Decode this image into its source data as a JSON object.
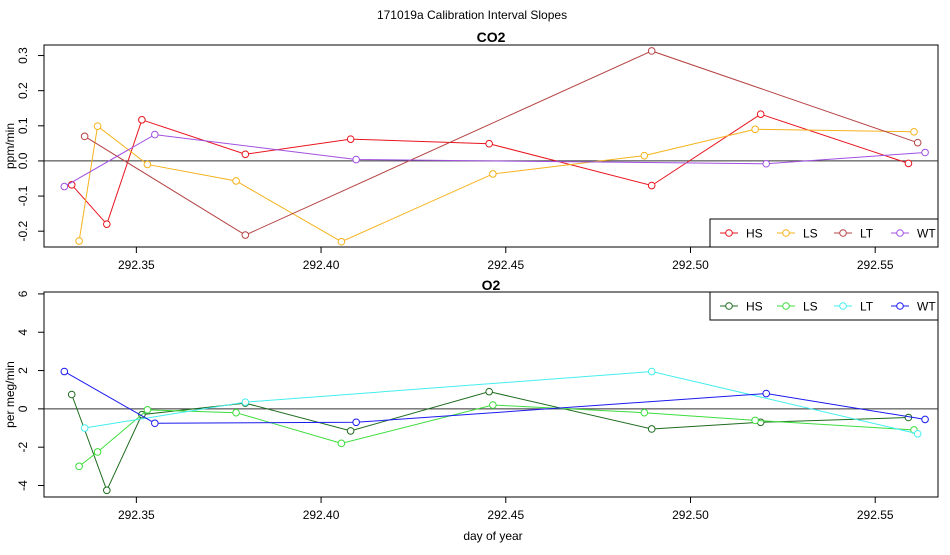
{
  "figure_title": "171019a   Calibration Interval Slopes",
  "chart_data": [
    {
      "type": "line",
      "title": "CO2",
      "xlabel": "",
      "ylabel": "ppm/min",
      "xlim": [
        292.325,
        292.567
      ],
      "ylim": [
        -0.245,
        0.33
      ],
      "x_ticks": [
        292.35,
        292.4,
        292.45,
        292.5,
        292.55
      ],
      "x_tick_labels": [
        "292.35",
        "292.40",
        "292.45",
        "292.50",
        "292.55"
      ],
      "y_ticks": [
        -0.2,
        -0.1,
        0.0,
        0.1,
        0.2,
        0.3
      ],
      "y_tick_labels": [
        "-0.2",
        "-0.1",
        "0.0",
        "0.1",
        "0.2",
        "0.3"
      ],
      "reference_line_y": 0,
      "legend_position": "bottom-right",
      "series": [
        {
          "name": "HS",
          "color": "#e8141e",
          "x": [
            292.3325,
            292.342,
            292.3515,
            292.3795,
            292.408,
            292.4455,
            292.4895,
            292.519,
            292.559
          ],
          "y": [
            -0.068,
            -0.18,
            0.117,
            0.019,
            0.062,
            0.049,
            -0.07,
            0.133,
            -0.007
          ]
        },
        {
          "name": "LS",
          "color": "#f5b21c",
          "x": [
            292.3345,
            292.3395,
            292.353,
            292.377,
            292.4055,
            292.4465,
            292.4875,
            292.5175,
            292.5605
          ],
          "y": [
            -0.228,
            0.099,
            -0.01,
            -0.057,
            -0.23,
            -0.037,
            0.015,
            0.09,
            0.083
          ]
        },
        {
          "name": "LT",
          "color": "#b54444",
          "x": [
            292.336,
            292.3795,
            292.4895,
            292.5615
          ],
          "y": [
            0.07,
            -0.211,
            0.313,
            0.052
          ]
        },
        {
          "name": "WT",
          "color": "#a050e0",
          "x": [
            292.3305,
            292.355,
            292.4095,
            292.5205,
            292.5635
          ],
          "y": [
            -0.073,
            0.075,
            0.004,
            -0.008,
            0.024
          ]
        }
      ]
    },
    {
      "type": "line",
      "title": "O2",
      "xlabel": "day of year",
      "ylabel": "per meg/min",
      "xlim": [
        292.325,
        292.567
      ],
      "ylim": [
        -4.6,
        6.1
      ],
      "x_ticks": [
        292.35,
        292.4,
        292.45,
        292.5,
        292.55
      ],
      "x_tick_labels": [
        "292.35",
        "292.40",
        "292.45",
        "292.50",
        "292.55"
      ],
      "y_ticks": [
        -4,
        -2,
        0,
        2,
        4,
        6
      ],
      "y_tick_labels": [
        "-4",
        "-2",
        "0",
        "2",
        "4",
        "6"
      ],
      "reference_line_y": 0,
      "legend_position": "top-right",
      "series": [
        {
          "name": "HS",
          "color": "#1e6b1e",
          "x": [
            292.3325,
            292.342,
            292.3515,
            292.3795,
            292.408,
            292.4455,
            292.4895,
            292.519,
            292.559
          ],
          "y": [
            0.75,
            -4.25,
            -0.3,
            0.3,
            -1.15,
            0.9,
            -1.05,
            -0.7,
            -0.45
          ]
        },
        {
          "name": "LS",
          "color": "#3ddd3d",
          "x": [
            292.3345,
            292.3395,
            292.353,
            292.377,
            292.4055,
            292.4465,
            292.4875,
            292.5175,
            292.5605
          ],
          "y": [
            -3.0,
            -2.25,
            -0.05,
            -0.2,
            -1.8,
            0.2,
            -0.2,
            -0.6,
            -1.1
          ]
        },
        {
          "name": "LT",
          "color": "#44eeee",
          "x": [
            292.336,
            292.3795,
            292.4895,
            292.5615
          ],
          "y": [
            -1.0,
            0.35,
            1.95,
            -1.3
          ]
        },
        {
          "name": "WT",
          "color": "#1a1aee",
          "x": [
            292.3305,
            292.355,
            292.4095,
            292.5205,
            292.5635
          ],
          "y": [
            1.95,
            -0.75,
            -0.7,
            0.8,
            -0.55
          ]
        }
      ]
    }
  ]
}
